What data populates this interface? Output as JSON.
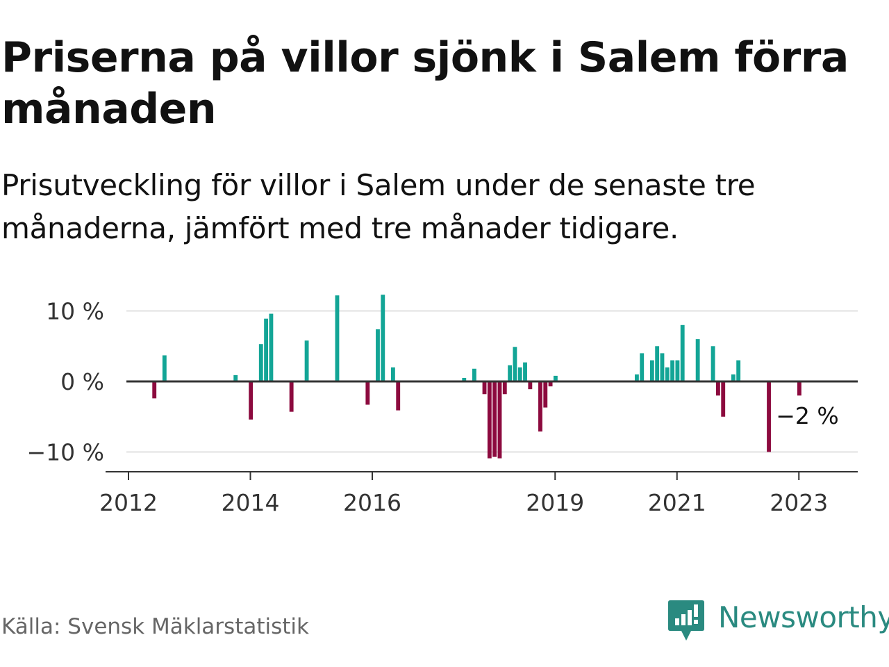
{
  "title": "Priserna på villor sjönk i Salem förra månaden",
  "subtitle": "Prisutveckling för villor i Salem under de senaste tre månaderna, jämfört med tre månader tidigare.",
  "source": "Källa: Svensk Mäklarstatistik",
  "brand": "Newsworthy",
  "colors": {
    "positive": "#13a596",
    "negative": "#8c0a3e",
    "brand": "#2a8a80"
  },
  "chart_data": {
    "type": "bar",
    "xlabel": "",
    "ylabel": "",
    "ylim": [
      -12.5,
      12.5
    ],
    "yticks": [
      {
        "value": 10,
        "label": "10 %"
      },
      {
        "value": 0,
        "label": "0 %"
      },
      {
        "value": -10,
        "label": "−10 %"
      }
    ],
    "xticks": [
      {
        "value": "2012-01",
        "label": "2012"
      },
      {
        "value": "2014-01",
        "label": "2014"
      },
      {
        "value": "2016-01",
        "label": "2016"
      },
      {
        "value": "2019-01",
        "label": "2019"
      },
      {
        "value": "2021-01",
        "label": "2021"
      },
      {
        "value": "2023-01",
        "label": "2023"
      }
    ],
    "xrange": [
      "2012-01",
      "2023-12"
    ],
    "grid": true,
    "annotation": {
      "date": "2023-01",
      "value": -2,
      "label": "−2 %"
    },
    "series": [
      {
        "points": [
          {
            "date": "2012-06",
            "value": -2.4
          },
          {
            "date": "2012-08",
            "value": 3.7
          },
          {
            "date": "2013-10",
            "value": 0.9
          },
          {
            "date": "2014-01",
            "value": -5.4
          },
          {
            "date": "2014-03",
            "value": 5.3
          },
          {
            "date": "2014-04",
            "value": 8.9
          },
          {
            "date": "2014-05",
            "value": 9.6
          },
          {
            "date": "2014-09",
            "value": -4.3
          },
          {
            "date": "2014-12",
            "value": 5.8
          },
          {
            "date": "2015-06",
            "value": 12.2
          },
          {
            "date": "2015-12",
            "value": -3.3
          },
          {
            "date": "2016-02",
            "value": 7.4
          },
          {
            "date": "2016-03",
            "value": 12.3
          },
          {
            "date": "2016-05",
            "value": 2.0
          },
          {
            "date": "2016-06",
            "value": -4.1
          },
          {
            "date": "2017-07",
            "value": 0.5
          },
          {
            "date": "2017-09",
            "value": 1.8
          },
          {
            "date": "2017-11",
            "value": -1.8
          },
          {
            "date": "2017-12",
            "value": -10.9
          },
          {
            "date": "2018-01",
            "value": -10.7
          },
          {
            "date": "2018-02",
            "value": -10.9
          },
          {
            "date": "2018-03",
            "value": -1.8
          },
          {
            "date": "2018-04",
            "value": 2.3
          },
          {
            "date": "2018-05",
            "value": 4.9
          },
          {
            "date": "2018-06",
            "value": 2.0
          },
          {
            "date": "2018-07",
            "value": 2.7
          },
          {
            "date": "2018-08",
            "value": -1.1
          },
          {
            "date": "2018-10",
            "value": -7.1
          },
          {
            "date": "2018-11",
            "value": -3.7
          },
          {
            "date": "2018-12",
            "value": -0.7
          },
          {
            "date": "2019-01",
            "value": 0.8
          },
          {
            "date": "2020-05",
            "value": 1.0
          },
          {
            "date": "2020-06",
            "value": 4.0
          },
          {
            "date": "2020-08",
            "value": 3.0
          },
          {
            "date": "2020-09",
            "value": 5.0
          },
          {
            "date": "2020-10",
            "value": 4.0
          },
          {
            "date": "2020-11",
            "value": 2.0
          },
          {
            "date": "2020-12",
            "value": 3.0
          },
          {
            "date": "2021-01",
            "value": 3.0
          },
          {
            "date": "2021-02",
            "value": 8.0
          },
          {
            "date": "2021-05",
            "value": 6.0
          },
          {
            "date": "2021-08",
            "value": 5.0
          },
          {
            "date": "2021-09",
            "value": -2.0
          },
          {
            "date": "2021-10",
            "value": -5.0
          },
          {
            "date": "2021-12",
            "value": 1.0
          },
          {
            "date": "2022-01",
            "value": 3.0
          },
          {
            "date": "2022-07",
            "value": -10.0
          },
          {
            "date": "2023-01",
            "value": -2.0
          }
        ]
      }
    ]
  }
}
